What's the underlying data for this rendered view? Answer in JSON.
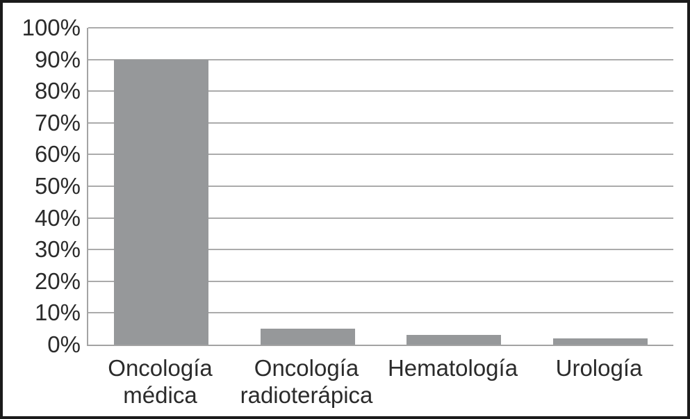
{
  "figure": {
    "background_color": "#ffffff",
    "frame_border_color": "#1b1b1b"
  },
  "chart_data": {
    "type": "bar",
    "title": "",
    "categories": [
      "Oncología médica",
      "Oncología radioterápica",
      "Hematología",
      "Urología"
    ],
    "values": [
      90,
      5,
      3,
      2
    ],
    "value_unit": "%",
    "xlabel": "",
    "ylabel": "",
    "ylim": [
      0,
      100
    ],
    "ytick_step": 10,
    "ytick_labels": [
      "0%",
      "10%",
      "20%",
      "30%",
      "40%",
      "50%",
      "60%",
      "70%",
      "80%",
      "90%",
      "100%"
    ],
    "grid": "horizontal",
    "legend_position": "none",
    "bar_color": "#96989a",
    "gridline_color": "#ababab",
    "axis_color": "#a3a3a3",
    "text_color": "#2b2b2b"
  }
}
